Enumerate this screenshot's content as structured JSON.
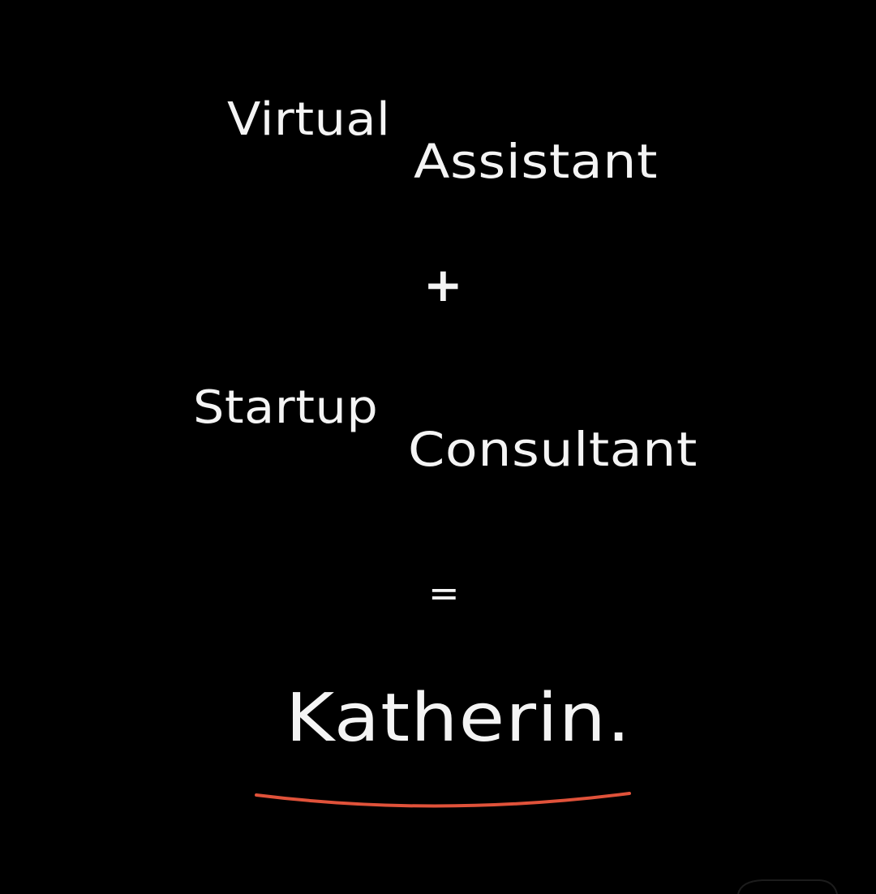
{
  "line1": {
    "first": "Virtual",
    "second": "Assistant"
  },
  "plus": "+",
  "line2": {
    "first": "Startup",
    "second": "Consultant"
  },
  "equals": "=",
  "name": "Katherin.",
  "colors": {
    "background": "#000000",
    "text": "#f4f4f4",
    "accent": "#e0523a"
  }
}
